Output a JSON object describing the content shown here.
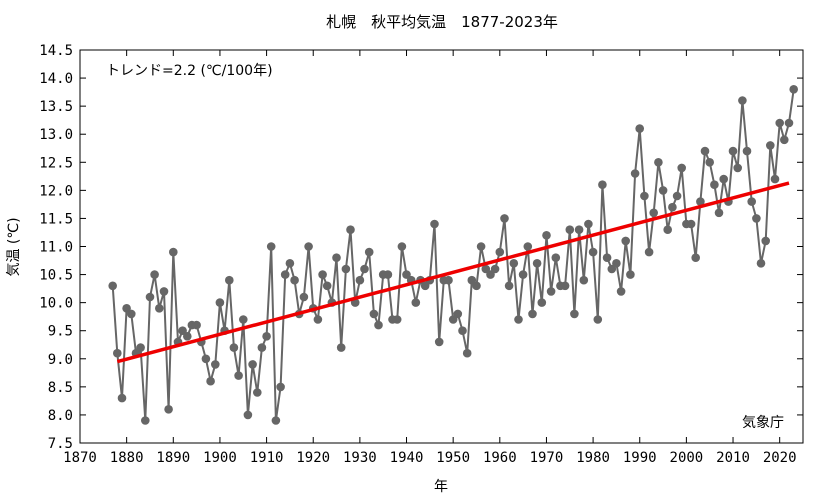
{
  "chart_data": {
    "type": "line",
    "title": "札幌　秋平均気温　1877-2023年",
    "xlabel": "年",
    "ylabel": "気温 (℃)",
    "xlim": [
      1870,
      2025
    ],
    "ylim": [
      7.5,
      14.5
    ],
    "xticks": [
      "1870",
      "1880",
      "1890",
      "1900",
      "1910",
      "1920",
      "1930",
      "1940",
      "1950",
      "1960",
      "1970",
      "1980",
      "1990",
      "2000",
      "2010",
      "2020"
    ],
    "yticks": [
      "7.5",
      "8.0",
      "8.5",
      "9.0",
      "9.5",
      "10.0",
      "10.5",
      "11.0",
      "11.5",
      "12.0",
      "12.5",
      "13.0",
      "13.5",
      "14.0",
      "14.5"
    ],
    "grid": false,
    "annotations": {
      "trend_label": "トレンド=2.2 (℃/100年)",
      "source": "気象庁"
    },
    "series": [
      {
        "color": "#666666",
        "marker": "circle",
        "x": [
          1877,
          1878,
          1879,
          1880,
          1881,
          1882,
          1883,
          1884,
          1885,
          1886,
          1887,
          1888,
          1889,
          1890,
          1891,
          1892,
          1893,
          1894,
          1895,
          1896,
          1897,
          1898,
          1899,
          1900,
          1901,
          1902,
          1903,
          1904,
          1905,
          1906,
          1907,
          1908,
          1909,
          1910,
          1911,
          1912,
          1913,
          1914,
          1915,
          1916,
          1917,
          1918,
          1919,
          1920,
          1921,
          1922,
          1923,
          1924,
          1925,
          1926,
          1927,
          1928,
          1929,
          1930,
          1931,
          1932,
          1933,
          1934,
          1935,
          1936,
          1937,
          1938,
          1939,
          1940,
          1941,
          1942,
          1943,
          1944,
          1945,
          1946,
          1947,
          1948,
          1949,
          1950,
          1951,
          1952,
          1953,
          1954,
          1955,
          1956,
          1957,
          1958,
          1959,
          1960,
          1961,
          1962,
          1963,
          1964,
          1965,
          1966,
          1967,
          1968,
          1969,
          1970,
          1971,
          1972,
          1973,
          1974,
          1975,
          1976,
          1977,
          1978,
          1979,
          1980,
          1981,
          1982,
          1983,
          1984,
          1985,
          1986,
          1987,
          1988,
          1989,
          1990,
          1991,
          1992,
          1993,
          1994,
          1995,
          1996,
          1997,
          1998,
          1999,
          2000,
          2001,
          2002,
          2003,
          2004,
          2005,
          2006,
          2007,
          2008,
          2009,
          2010,
          2011,
          2012,
          2013,
          2014,
          2015,
          2016,
          2017,
          2018,
          2019,
          2020,
          2021,
          2022,
          2023
        ],
        "values": [
          10.3,
          9.1,
          8.3,
          9.9,
          9.8,
          9.1,
          9.2,
          7.9,
          10.1,
          10.5,
          9.9,
          10.2,
          8.1,
          10.9,
          9.3,
          9.5,
          9.4,
          9.6,
          9.6,
          9.3,
          9.0,
          8.6,
          8.9,
          10.0,
          9.5,
          10.4,
          9.2,
          8.7,
          9.7,
          8.0,
          8.9,
          8.4,
          9.2,
          9.4,
          11.0,
          7.9,
          8.5,
          10.5,
          10.7,
          10.4,
          9.8,
          10.1,
          11.0,
          9.9,
          9.7,
          10.5,
          10.3,
          10.0,
          10.8,
          9.2,
          10.6,
          11.3,
          10.0,
          10.4,
          10.6,
          10.9,
          9.8,
          9.6,
          10.5,
          10.5,
          9.7,
          9.7,
          11.0,
          10.5,
          10.4,
          10.0,
          10.4,
          10.3,
          10.4,
          11.4,
          9.3,
          10.4,
          10.4,
          9.7,
          9.8,
          9.5,
          9.1,
          10.4,
          10.3,
          11.0,
          10.6,
          10.5,
          10.6,
          10.9,
          11.5,
          10.3,
          10.7,
          9.7,
          10.5,
          11.0,
          9.8,
          10.7,
          10.0,
          11.2,
          10.2,
          10.8,
          10.3,
          10.3,
          11.3,
          9.8,
          11.3,
          10.4,
          11.4,
          10.9,
          9.7,
          12.1,
          10.8,
          10.6,
          10.7,
          10.2,
          11.1,
          10.5,
          12.3,
          13.1,
          11.9,
          10.9,
          11.6,
          12.5,
          12.0,
          11.3,
          11.7,
          11.9,
          12.4,
          11.4,
          11.4,
          10.8,
          11.8,
          12.7,
          12.5,
          12.1,
          11.6,
          12.2,
          11.8,
          12.7,
          12.4,
          13.6,
          12.7,
          11.8,
          11.5,
          10.7,
          11.1,
          12.8,
          12.2,
          13.2,
          12.9,
          13.2,
          13.8
        ]
      }
    ],
    "trend": {
      "color": "#ee0000",
      "x": [
        1878,
        2022
      ],
      "values": [
        8.95,
        12.13
      ]
    }
  }
}
